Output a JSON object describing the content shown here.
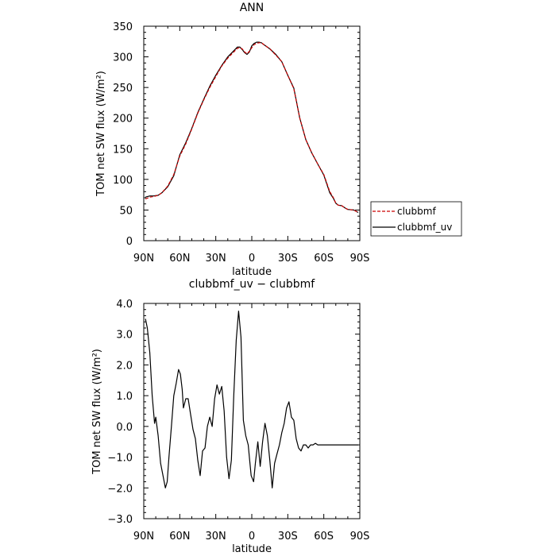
{
  "chart_data": [
    {
      "type": "line",
      "title": "ANN",
      "xlabel": "latitude",
      "ylabel": "TOM net SW flux (W/m²)",
      "xlim": [
        90,
        -90
      ],
      "ylim": [
        0,
        350
      ],
      "x_tick_labels": [
        "90N",
        "60N",
        "30N",
        "0",
        "30S",
        "60S",
        "90S"
      ],
      "y_tick_labels": [
        "0",
        "50",
        "100",
        "150",
        "200",
        "250",
        "300",
        "350"
      ],
      "legend": {
        "placement": "right-bottom",
        "entries": [
          "clubbmf",
          "clubbmf_uv"
        ]
      },
      "series": [
        {
          "name": "clubbmf",
          "style": "dashed",
          "color": "#cc0000",
          "x": [
            88.6,
            85,
            82,
            78,
            75,
            70,
            65,
            60,
            55,
            50,
            45,
            40,
            35,
            30,
            25,
            20,
            15,
            12,
            10,
            8,
            6,
            4,
            2,
            0,
            -2,
            -4,
            -6,
            -8,
            -10,
            -15,
            -20,
            -25,
            -30,
            -35,
            -40,
            -45,
            -50,
            -55,
            -60,
            -65,
            -68,
            -70,
            -72,
            -75,
            -78,
            -80,
            -85,
            -88.6
          ],
          "y": [
            68,
            71,
            72,
            74,
            78,
            89,
            108,
            138,
            158,
            182,
            208,
            230,
            250,
            268,
            285,
            298,
            308,
            314,
            315,
            313,
            308,
            305,
            309,
            315,
            320,
            322,
            323,
            323,
            320,
            313,
            303,
            292,
            270,
            248,
            200,
            165,
            143,
            125,
            108,
            80,
            70,
            61,
            58,
            57,
            53,
            51,
            50,
            46
          ]
        },
        {
          "name": "clubbmf_uv",
          "style": "solid",
          "color": "#000000",
          "x": [
            88.6,
            85,
            82,
            78,
            75,
            70,
            65,
            60,
            55,
            50,
            45,
            40,
            35,
            30,
            25,
            20,
            15,
            12,
            10,
            8,
            6,
            4,
            2,
            0,
            -2,
            -4,
            -6,
            -8,
            -10,
            -15,
            -20,
            -25,
            -30,
            -35,
            -40,
            -45,
            -50,
            -55,
            -60,
            -65,
            -68,
            -70,
            -72,
            -75,
            -78,
            -80,
            -85,
            -88.6
          ],
          "y": [
            71,
            73,
            73,
            74,
            78,
            88,
            106,
            140,
            160,
            183,
            209,
            231,
            252,
            270,
            286,
            300,
            310,
            316,
            316,
            312,
            307,
            304,
            308,
            318,
            322,
            324,
            324,
            323,
            320,
            313,
            304,
            292,
            270,
            249,
            200,
            165,
            143,
            125,
            107,
            78,
            69,
            61,
            58,
            57,
            53,
            51,
            50,
            46
          ]
        }
      ]
    },
    {
      "type": "line",
      "title": "clubbmf_uv − clubbmf",
      "xlabel": "latitude",
      "ylabel": "TOM net SW flux (W/m²)",
      "xlim": [
        90,
        -90
      ],
      "ylim": [
        -3.0,
        4.0
      ],
      "x_tick_labels": [
        "90N",
        "60N",
        "30N",
        "0",
        "30S",
        "60S",
        "90S"
      ],
      "y_tick_labels": [
        "−3.0",
        "−2.0",
        "−1.0",
        "0.0",
        "1.0",
        "2.0",
        "3.0",
        "4.0"
      ],
      "series": [
        {
          "style": "solid",
          "color": "#000000",
          "x": [
            88.6,
            87,
            85,
            83,
            81,
            80,
            78,
            76,
            74,
            72,
            70.5,
            69,
            67,
            65,
            63,
            61,
            59.5,
            58,
            57,
            55,
            53,
            51,
            49,
            47,
            45,
            43,
            41,
            39,
            37,
            35,
            33,
            31,
            29,
            27,
            25,
            23,
            21,
            19,
            17,
            15,
            13,
            11,
            9,
            7,
            5,
            3,
            1.5,
            0.5,
            -0.5,
            -1.5,
            -3,
            -5,
            -7,
            -9,
            -11,
            -13,
            -15,
            -17,
            -19,
            -21,
            -23,
            -25,
            -27,
            -29,
            -31,
            -33,
            -35,
            -37,
            -39,
            -41,
            -43,
            -45,
            -47,
            -49,
            -51,
            -53,
            -55,
            -57,
            -59,
            -61,
            -63,
            -65,
            -67,
            -69,
            -71,
            -73,
            -75,
            -77,
            -79,
            -81,
            -83,
            -85,
            -87,
            -88.6
          ],
          "y": [
            3.5,
            3.2,
            2.4,
            1.0,
            0.1,
            0.3,
            -0.3,
            -1.2,
            -1.6,
            -2.0,
            -1.8,
            -1.0,
            0.0,
            1.0,
            1.4,
            1.85,
            1.7,
            1.2,
            0.6,
            0.9,
            0.9,
            0.4,
            -0.1,
            -0.4,
            -1.1,
            -1.6,
            -0.8,
            -0.7,
            0.0,
            0.3,
            0.0,
            0.9,
            1.35,
            1.05,
            1.3,
            0.5,
            -1.0,
            -1.7,
            -1.1,
            1.0,
            2.8,
            3.75,
            2.9,
            0.2,
            -0.3,
            -0.6,
            -1.2,
            -1.6,
            -1.7,
            -1.8,
            -1.2,
            -0.5,
            -1.3,
            -0.5,
            0.1,
            -0.3,
            -1.1,
            -2.0,
            -1.2,
            -0.9,
            -0.6,
            -0.2,
            0.1,
            0.6,
            0.8,
            0.3,
            0.2,
            -0.4,
            -0.7,
            -0.8,
            -0.6,
            -0.6,
            -0.7,
            -0.6,
            -0.6,
            -0.55,
            -0.6,
            -0.6,
            -0.6,
            -0.6,
            -0.6,
            -0.6,
            -0.6,
            -0.6,
            -0.6,
            -0.6,
            -0.6,
            -0.6,
            -0.6,
            -0.6,
            -0.6,
            -0.6,
            -0.6,
            -0.6
          ]
        }
      ]
    }
  ]
}
